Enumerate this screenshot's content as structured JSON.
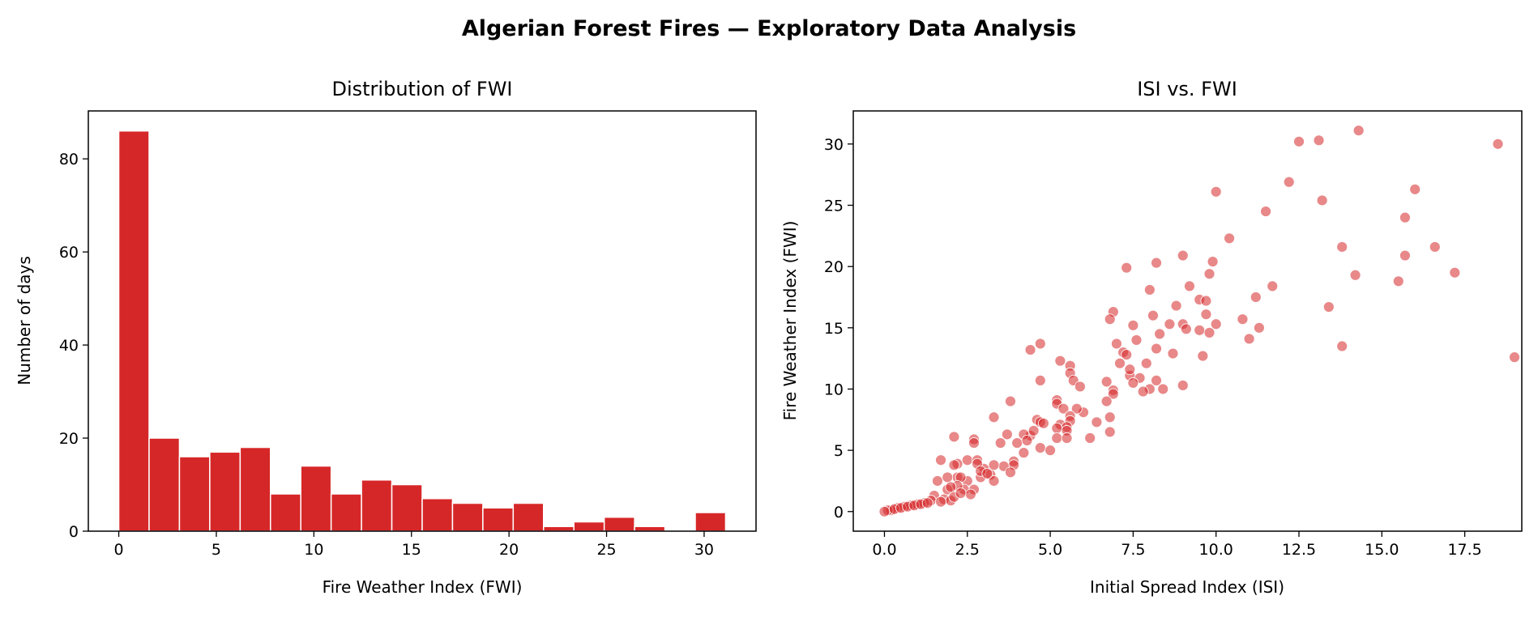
{
  "title": "Algerian Forest Fires — Exploratory Data Analysis",
  "colors": {
    "bar": "#d62728",
    "point": "#d62728"
  },
  "chart_data": [
    {
      "type": "bar",
      "title": "Distribution of FWI",
      "xlabel": "Fire Weather Index (FWI)",
      "ylabel": "Number of days",
      "bin_start": 0,
      "bin_end": 31.1,
      "bins": 20,
      "values": [
        86,
        20,
        16,
        17,
        18,
        8,
        14,
        8,
        11,
        10,
        7,
        6,
        5,
        6,
        1,
        2,
        3,
        1,
        0,
        4
      ],
      "xlim": [
        -1.56,
        32.66
      ],
      "ylim": [
        0,
        90.3
      ],
      "xticks": [
        0,
        5,
        10,
        15,
        20,
        25,
        30
      ],
      "yticks": [
        0,
        20,
        40,
        60,
        80
      ],
      "grid": false
    },
    {
      "type": "scatter",
      "title": "ISI vs. FWI",
      "xlabel": "Initial Spread Index (ISI)",
      "ylabel": "Fire Weather Index (FWI)",
      "xlim": [
        -0.94,
        19.22
      ],
      "ylim": [
        -1.6,
        32.7
      ],
      "xticks": [
        "0.0",
        "2.5",
        "5.0",
        "7.5",
        "10.0",
        "12.5",
        "15.0",
        "17.5"
      ],
      "yticks": [
        "0",
        "5",
        "10",
        "15",
        "20",
        "25",
        "30"
      ],
      "grid": false,
      "points": [
        [
          14.3,
          31.1
        ],
        [
          13.1,
          30.3
        ],
        [
          12.5,
          30.2
        ],
        [
          18.5,
          30.0
        ],
        [
          12.2,
          26.9
        ],
        [
          10.0,
          26.1
        ],
        [
          16.0,
          26.3
        ],
        [
          13.2,
          25.4
        ],
        [
          11.5,
          24.5
        ],
        [
          15.7,
          24.0
        ],
        [
          10.4,
          22.3
        ],
        [
          13.8,
          21.6
        ],
        [
          16.6,
          21.6
        ],
        [
          9.0,
          20.9
        ],
        [
          15.7,
          20.9
        ],
        [
          8.2,
          20.3
        ],
        [
          9.9,
          20.4
        ],
        [
          7.3,
          19.9
        ],
        [
          14.2,
          19.3
        ],
        [
          17.2,
          19.5
        ],
        [
          9.8,
          19.4
        ],
        [
          15.5,
          18.8
        ],
        [
          9.2,
          18.4
        ],
        [
          11.7,
          18.4
        ],
        [
          8.0,
          18.1
        ],
        [
          11.2,
          17.5
        ],
        [
          9.5,
          17.3
        ],
        [
          9.7,
          17.2
        ],
        [
          8.8,
          16.8
        ],
        [
          13.4,
          16.7
        ],
        [
          6.9,
          16.3
        ],
        [
          8.1,
          16.0
        ],
        [
          6.8,
          15.7
        ],
        [
          10.8,
          15.7
        ],
        [
          9.7,
          16.1
        ],
        [
          7.5,
          15.2
        ],
        [
          8.6,
          15.3
        ],
        [
          9.0,
          15.3
        ],
        [
          10.0,
          15.3
        ],
        [
          9.1,
          14.9
        ],
        [
          9.5,
          14.8
        ],
        [
          9.8,
          14.6
        ],
        [
          11.3,
          15.0
        ],
        [
          8.3,
          14.5
        ],
        [
          11.0,
          14.1
        ],
        [
          7.6,
          14.0
        ],
        [
          7.0,
          13.7
        ],
        [
          4.7,
          13.7
        ],
        [
          4.4,
          13.2
        ],
        [
          8.2,
          13.3
        ],
        [
          7.2,
          13.0
        ],
        [
          7.3,
          12.8
        ],
        [
          13.8,
          13.5
        ],
        [
          8.7,
          12.9
        ],
        [
          9.6,
          12.7
        ],
        [
          19.0,
          12.6
        ],
        [
          5.3,
          12.3
        ],
        [
          7.1,
          12.1
        ],
        [
          5.6,
          11.9
        ],
        [
          7.9,
          12.1
        ],
        [
          5.6,
          11.3
        ],
        [
          7.4,
          11.1
        ],
        [
          7.4,
          11.6
        ],
        [
          7.7,
          10.9
        ],
        [
          5.7,
          10.7
        ],
        [
          4.7,
          10.7
        ],
        [
          6.7,
          10.6
        ],
        [
          7.5,
          10.5
        ],
        [
          8.2,
          10.7
        ],
        [
          8.0,
          10.0
        ],
        [
          7.8,
          9.8
        ],
        [
          8.4,
          10.0
        ],
        [
          9.0,
          10.3
        ],
        [
          6.9,
          9.9
        ],
        [
          6.9,
          9.6
        ],
        [
          5.9,
          10.2
        ],
        [
          6.0,
          8.1
        ],
        [
          5.2,
          9.1
        ],
        [
          5.8,
          8.4
        ],
        [
          6.7,
          9.0
        ],
        [
          3.8,
          9.0
        ],
        [
          5.2,
          8.8
        ],
        [
          5.4,
          8.4
        ],
        [
          5.6,
          7.8
        ],
        [
          6.8,
          7.7
        ],
        [
          6.4,
          7.3
        ],
        [
          4.6,
          7.5
        ],
        [
          4.7,
          7.3
        ],
        [
          4.8,
          7.2
        ],
        [
          3.3,
          7.7
        ],
        [
          5.3,
          7.1
        ],
        [
          5.6,
          7.4
        ],
        [
          5.5,
          6.9
        ],
        [
          3.7,
          6.3
        ],
        [
          4.4,
          6.2
        ],
        [
          4.2,
          6.3
        ],
        [
          4.5,
          6.6
        ],
        [
          5.2,
          6.8
        ],
        [
          5.5,
          6.6
        ],
        [
          6.8,
          6.5
        ],
        [
          5.2,
          6.0
        ],
        [
          5.5,
          6.0
        ],
        [
          6.2,
          6.0
        ],
        [
          2.1,
          6.1
        ],
        [
          2.7,
          5.9
        ],
        [
          2.7,
          5.6
        ],
        [
          3.5,
          5.6
        ],
        [
          4.0,
          5.6
        ],
        [
          4.3,
          5.8
        ],
        [
          4.2,
          4.8
        ],
        [
          4.7,
          5.2
        ],
        [
          5.0,
          5.0
        ],
        [
          3.9,
          4.1
        ],
        [
          3.9,
          3.8
        ],
        [
          3.6,
          3.7
        ],
        [
          3.8,
          3.2
        ],
        [
          3.3,
          3.8
        ],
        [
          3.0,
          3.5
        ],
        [
          3.2,
          3.0
        ],
        [
          2.2,
          3.9
        ],
        [
          2.1,
          3.8
        ],
        [
          2.5,
          4.2
        ],
        [
          2.8,
          4.2
        ],
        [
          1.7,
          4.2
        ],
        [
          2.8,
          3.9
        ],
        [
          3.3,
          2.5
        ],
        [
          2.2,
          2.8
        ],
        [
          2.5,
          2.5
        ],
        [
          2.3,
          2.8
        ],
        [
          1.6,
          2.5
        ],
        [
          1.9,
          2.8
        ],
        [
          2.9,
          2.8
        ],
        [
          2.7,
          1.8
        ],
        [
          2.4,
          1.8
        ],
        [
          2.6,
          1.4
        ],
        [
          2.2,
          2.1
        ],
        [
          1.9,
          1.8
        ],
        [
          1.5,
          1.3
        ],
        [
          1.8,
          1.0
        ],
        [
          2.0,
          0.9
        ],
        [
          1.4,
          0.9
        ],
        [
          1.7,
          0.8
        ],
        [
          1.2,
          0.7
        ],
        [
          1.0,
          0.6
        ],
        [
          0.8,
          0.5
        ],
        [
          0.6,
          0.4
        ],
        [
          0.4,
          0.3
        ],
        [
          0.2,
          0.1
        ],
        [
          0.1,
          0.1
        ],
        [
          0.0,
          0.0
        ],
        [
          0.3,
          0.2
        ],
        [
          0.5,
          0.3
        ],
        [
          0.7,
          0.4
        ],
        [
          0.9,
          0.5
        ],
        [
          1.1,
          0.6
        ],
        [
          1.3,
          0.7
        ],
        [
          2.1,
          1.2
        ],
        [
          2.3,
          1.5
        ],
        [
          2.0,
          2.0
        ],
        [
          2.9,
          3.3
        ],
        [
          3.1,
          3.1
        ]
      ]
    }
  ]
}
